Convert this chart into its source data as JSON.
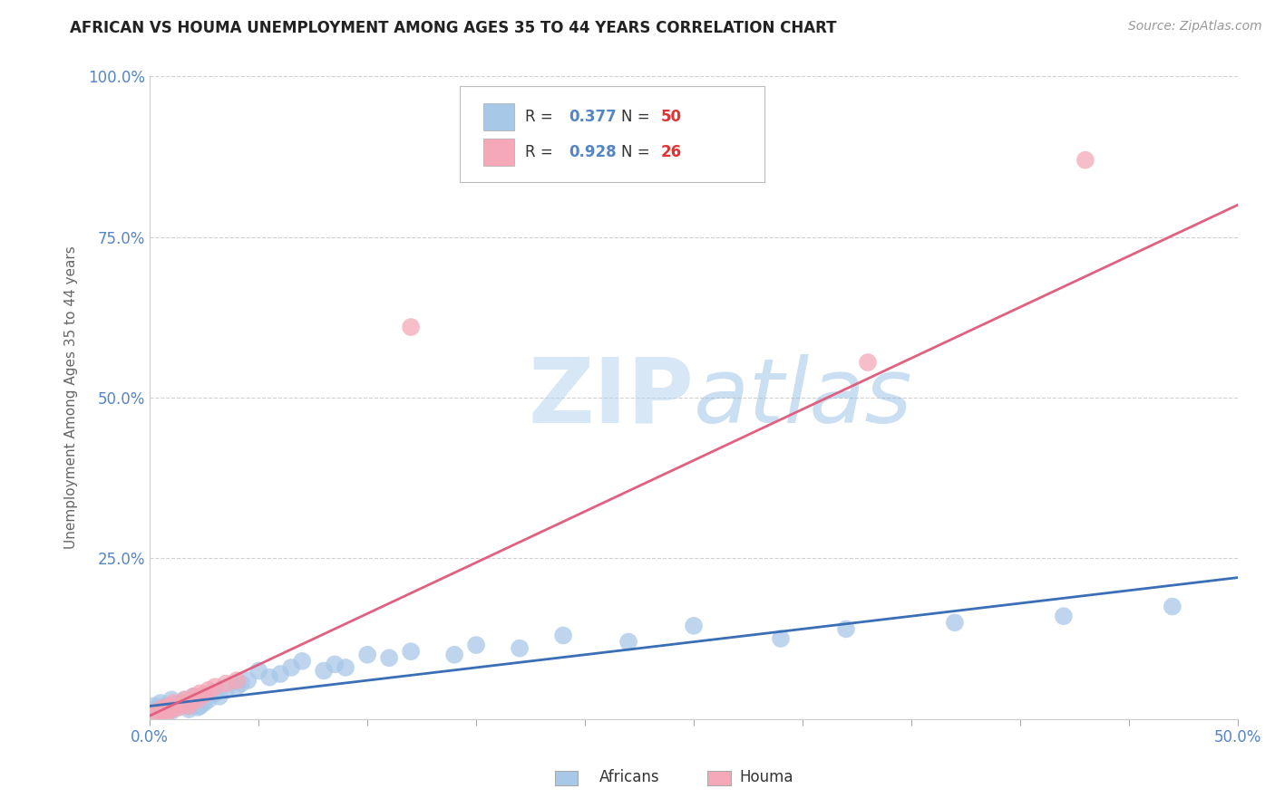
{
  "title": "AFRICAN VS HOUMA UNEMPLOYMENT AMONG AGES 35 TO 44 YEARS CORRELATION CHART",
  "source": "Source: ZipAtlas.com",
  "ylabel": "Unemployment Among Ages 35 to 44 years",
  "xlim": [
    0,
    0.5
  ],
  "ylim": [
    0,
    1.0
  ],
  "legend_R_africans": "0.377",
  "legend_N_africans": "50",
  "legend_R_houma": "0.928",
  "legend_N_houma": "26",
  "africans_color": "#a8c8e8",
  "houma_color": "#f4a8b8",
  "line_africans_color": "#3a6eb5",
  "line_houma_color": "#e06080",
  "watermark_color": "#d0e4f4",
  "background_color": "#ffffff",
  "grid_color": "#cccccc",
  "tick_color": "#5585c5",
  "title_color": "#222222",
  "africans_x": [
    0.002,
    0.003,
    0.005,
    0.005,
    0.007,
    0.008,
    0.009,
    0.01,
    0.01,
    0.012,
    0.013,
    0.015,
    0.016,
    0.017,
    0.018,
    0.019,
    0.02,
    0.021,
    0.022,
    0.023,
    0.025,
    0.027,
    0.03,
    0.032,
    0.035,
    0.04,
    0.042,
    0.045,
    0.05,
    0.055,
    0.06,
    0.065,
    0.07,
    0.08,
    0.085,
    0.09,
    0.1,
    0.11,
    0.12,
    0.14,
    0.15,
    0.17,
    0.19,
    0.22,
    0.25,
    0.29,
    0.32,
    0.37,
    0.42,
    0.47
  ],
  "africans_y": [
    0.02,
    0.015,
    0.01,
    0.025,
    0.02,
    0.015,
    0.018,
    0.012,
    0.03,
    0.022,
    0.018,
    0.025,
    0.03,
    0.02,
    0.015,
    0.028,
    0.035,
    0.022,
    0.018,
    0.02,
    0.025,
    0.03,
    0.04,
    0.035,
    0.045,
    0.05,
    0.055,
    0.06,
    0.075,
    0.065,
    0.07,
    0.08,
    0.09,
    0.075,
    0.085,
    0.08,
    0.1,
    0.095,
    0.105,
    0.1,
    0.115,
    0.11,
    0.13,
    0.12,
    0.145,
    0.125,
    0.14,
    0.15,
    0.16,
    0.175
  ],
  "houma_x": [
    0.002,
    0.004,
    0.005,
    0.006,
    0.007,
    0.008,
    0.009,
    0.01,
    0.011,
    0.013,
    0.015,
    0.016,
    0.017,
    0.018,
    0.019,
    0.02,
    0.022,
    0.023,
    0.025,
    0.027,
    0.03,
    0.035,
    0.04,
    0.12,
    0.33,
    0.43
  ],
  "houma_y": [
    0.01,
    0.008,
    0.015,
    0.012,
    0.018,
    0.01,
    0.02,
    0.015,
    0.025,
    0.018,
    0.022,
    0.03,
    0.025,
    0.02,
    0.028,
    0.035,
    0.03,
    0.04,
    0.038,
    0.045,
    0.05,
    0.055,
    0.06,
    0.61,
    0.555,
    0.87
  ],
  "line_af_x0": 0.0,
  "line_af_y0": 0.02,
  "line_af_x1": 0.5,
  "line_af_y1": 0.22,
  "line_ho_x0": 0.0,
  "line_ho_y0": 0.005,
  "line_ho_x1": 0.5,
  "line_ho_y1": 0.8
}
